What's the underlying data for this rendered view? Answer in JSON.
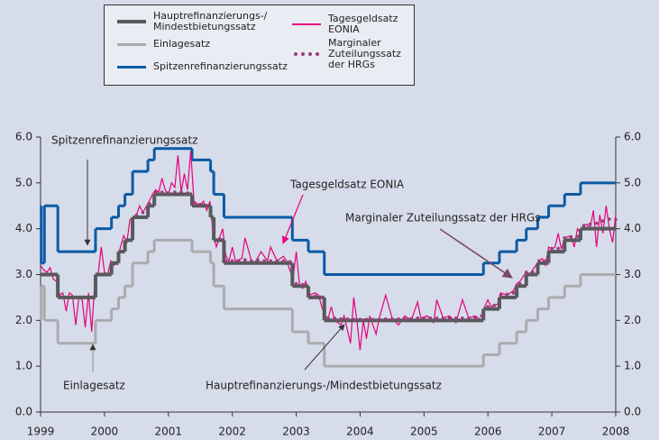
{
  "chart_data": {
    "type": "line",
    "xlim": [
      1999,
      2008
    ],
    "xticks": [
      1999,
      2000,
      2001,
      2002,
      2003,
      2004,
      2005,
      2006,
      2007,
      2008
    ],
    "ylim": [
      0,
      6
    ],
    "yticks": [
      {
        "value": 0,
        "label": "0.0"
      },
      {
        "value": 1,
        "label": "1.0"
      },
      {
        "value": 2,
        "label": "2.0"
      },
      {
        "value": 3,
        "label": "3.0"
      },
      {
        "value": 4,
        "label": "4.0"
      },
      {
        "value": 5,
        "label": "5.0"
      },
      {
        "value": 6,
        "label": "6.0"
      }
    ],
    "y2lim": [
      0,
      6
    ],
    "y2ticks": [
      {
        "value": 0,
        "label": "0.0"
      },
      {
        "value": 1,
        "label": "1.0"
      },
      {
        "value": 2,
        "label": "2.0"
      },
      {
        "value": 3,
        "label": "3.0"
      },
      {
        "value": 4,
        "label": "4.0"
      },
      {
        "value": 5,
        "label": "5.0"
      },
      {
        "value": 6,
        "label": "6.0"
      }
    ],
    "series": [
      {
        "name": "Einlagesatz",
        "color": "#a9abae",
        "style": "step",
        "x": [
          1999.0,
          1999.01,
          1999.06,
          1999.27,
          1999.86,
          2000.11,
          2000.22,
          2000.32,
          2000.44,
          2000.68,
          2000.78,
          2001.37,
          2001.66,
          2001.71,
          2001.87,
          2002.94,
          2003.19,
          2003.44,
          2005.93,
          2006.18,
          2006.45,
          2006.6,
          2006.78,
          2006.95,
          2007.2,
          2007.45,
          2008.0
        ],
        "values": [
          2.0,
          2.75,
          2.0,
          1.5,
          2.0,
          2.25,
          2.5,
          2.75,
          3.25,
          3.5,
          3.75,
          3.5,
          3.25,
          2.75,
          2.25,
          1.75,
          1.5,
          1.0,
          1.25,
          1.5,
          1.75,
          2.0,
          2.25,
          2.5,
          2.75,
          3.0,
          3.0
        ]
      },
      {
        "name": "Spitzenrefinanzierungssatz",
        "color": "#0b5aa6",
        "style": "step",
        "x": [
          1999.0,
          1999.01,
          1999.06,
          1999.27,
          1999.86,
          2000.11,
          2000.22,
          2000.32,
          2000.44,
          2000.68,
          2000.78,
          2001.37,
          2001.66,
          2001.71,
          2001.87,
          2002.94,
          2003.19,
          2003.44,
          2005.93,
          2006.18,
          2006.45,
          2006.6,
          2006.78,
          2006.95,
          2007.2,
          2007.45,
          2008.0
        ],
        "values": [
          4.5,
          3.25,
          4.5,
          3.5,
          4.0,
          4.25,
          4.5,
          4.75,
          5.25,
          5.5,
          5.75,
          5.5,
          5.25,
          4.75,
          4.25,
          3.75,
          3.5,
          3.0,
          3.25,
          3.5,
          3.75,
          4.0,
          4.25,
          4.5,
          4.75,
          5.0,
          5.0
        ]
      },
      {
        "name": "Tagesgeldsatz EONIA",
        "color": "#e6007e",
        "style": "line",
        "x": [
          1999.0,
          1999.05,
          1999.1,
          1999.15,
          1999.2,
          1999.25,
          1999.3,
          1999.35,
          1999.4,
          1999.45,
          1999.5,
          1999.55,
          1999.6,
          1999.65,
          1999.7,
          1999.75,
          1999.8,
          1999.85,
          1999.9,
          1999.95,
          2000.0,
          2000.05,
          2000.1,
          2000.15,
          2000.2,
          2000.25,
          2000.3,
          2000.35,
          2000.4,
          2000.45,
          2000.5,
          2000.55,
          2000.6,
          2000.7,
          2000.75,
          2000.8,
          2000.85,
          2000.9,
          2000.95,
          2001.0,
          2001.05,
          2001.1,
          2001.15,
          2001.2,
          2001.25,
          2001.3,
          2001.35,
          2001.4,
          2001.45,
          2001.5,
          2001.55,
          2001.6,
          2001.65,
          2001.7,
          2001.75,
          2001.8,
          2001.85,
          2001.9,
          2001.95,
          2002.0,
          2002.05,
          2002.15,
          2002.2,
          2002.3,
          2002.35,
          2002.45,
          2002.55,
          2002.6,
          2002.7,
          2002.8,
          2002.85,
          2002.9,
          2002.95,
          2003.0,
          2003.05,
          2003.1,
          2003.15,
          2003.2,
          2003.3,
          2003.35,
          2003.4,
          2003.45,
          2003.5,
          2003.55,
          2003.6,
          2003.7,
          2003.75,
          2003.85,
          2003.9,
          2003.95,
          2004.0,
          2004.05,
          2004.1,
          2004.15,
          2004.25,
          2004.3,
          2004.4,
          2004.5,
          2004.6,
          2004.7,
          2004.8,
          2004.9,
          2004.95,
          2005.05,
          2005.15,
          2005.2,
          2005.3,
          2005.4,
          2005.5,
          2005.6,
          2005.7,
          2005.8,
          2005.9,
          2005.95,
          2006.0,
          2006.05,
          2006.15,
          2006.2,
          2006.3,
          2006.4,
          2006.45,
          2006.5,
          2006.55,
          2006.6,
          2006.65,
          2006.7,
          2006.8,
          2006.85,
          2006.9,
          2006.95,
          2007.0,
          2007.05,
          2007.1,
          2007.15,
          2007.2,
          2007.3,
          2007.35,
          2007.4,
          2007.45,
          2007.5,
          2007.55,
          2007.6,
          2007.65,
          2007.7,
          2007.75,
          2007.8,
          2007.85,
          2007.9,
          2007.95,
          2008.0
        ],
        "values": [
          3.2,
          3.1,
          3.05,
          3.15,
          2.9,
          2.85,
          2.55,
          2.6,
          2.2,
          2.6,
          2.55,
          1.9,
          2.5,
          2.45,
          1.85,
          2.6,
          1.75,
          2.9,
          3.0,
          3.6,
          3.05,
          3.0,
          3.3,
          3.2,
          3.3,
          3.6,
          3.85,
          3.7,
          4.2,
          4.25,
          4.3,
          4.5,
          4.35,
          4.6,
          4.75,
          4.85,
          4.8,
          5.1,
          4.85,
          4.75,
          5.0,
          4.9,
          5.6,
          4.8,
          5.2,
          4.85,
          5.7,
          4.6,
          4.55,
          4.5,
          4.6,
          4.4,
          4.6,
          3.9,
          3.6,
          3.8,
          4.0,
          3.4,
          3.3,
          3.6,
          3.3,
          3.35,
          3.8,
          3.3,
          3.25,
          3.5,
          3.3,
          3.6,
          3.3,
          3.4,
          3.3,
          3.1,
          2.9,
          3.5,
          2.8,
          2.7,
          2.85,
          2.55,
          2.6,
          2.55,
          2.3,
          2.1,
          2.05,
          2.3,
          2.0,
          1.9,
          2.1,
          1.5,
          2.5,
          2.0,
          1.35,
          2.0,
          1.6,
          2.1,
          1.7,
          2.05,
          2.55,
          2.05,
          1.9,
          2.1,
          2.0,
          2.4,
          2.05,
          2.1,
          1.95,
          2.45,
          2.05,
          2.1,
          1.95,
          2.45,
          2.05,
          2.1,
          2.0,
          2.3,
          2.45,
          2.3,
          2.35,
          2.6,
          2.55,
          2.65,
          2.8,
          2.85,
          2.95,
          3.05,
          3.0,
          3.1,
          3.3,
          3.35,
          3.2,
          3.6,
          3.55,
          3.6,
          3.9,
          3.55,
          3.8,
          3.85,
          3.6,
          4.0,
          3.9,
          4.05,
          4.1,
          4.0,
          4.4,
          3.6,
          4.3,
          3.9,
          4.5,
          4.0,
          3.7,
          4.3
        ]
      },
      {
        "name": "Hauptrefinanzierungs-/\nMindestbietungssatz",
        "color": "#58595b",
        "style": "step",
        "x": [
          1999.0,
          1999.27,
          1999.86,
          2000.11,
          2000.22,
          2000.32,
          2000.44,
          2000.68,
          2000.78,
          2001.37,
          2001.66,
          2001.71,
          2001.87,
          2002.94,
          2003.19,
          2003.44,
          2005.93,
          2006.18,
          2006.45,
          2006.6,
          2006.78,
          2006.95,
          2007.2,
          2007.45,
          2008.0
        ],
        "values": [
          3.0,
          2.5,
          3.0,
          3.25,
          3.5,
          3.75,
          4.25,
          4.5,
          4.75,
          4.5,
          4.25,
          3.75,
          3.25,
          2.75,
          2.5,
          2.0,
          2.25,
          2.5,
          2.75,
          3.0,
          3.25,
          3.5,
          3.75,
          4.0,
          4.0
        ]
      },
      {
        "name": "Marginaler Zuteilungssatz der HRGs",
        "color": "#9b3d78",
        "style": "dots",
        "x": [
          2000.5,
          2000.6,
          2000.7,
          2000.8,
          2000.9,
          2001.0,
          2001.1,
          2001.2,
          2001.3,
          2001.4,
          2001.5,
          2001.6,
          2001.7,
          2001.8,
          2001.9,
          2002.0,
          2002.1,
          2002.2,
          2002.3,
          2002.4,
          2002.5,
          2002.6,
          2002.7,
          2002.8,
          2002.9,
          2003.0,
          2003.1,
          2003.2,
          2003.3,
          2003.4,
          2003.5,
          2003.6,
          2003.7,
          2003.8,
          2003.9,
          2004.0,
          2004.1,
          2004.2,
          2004.3,
          2004.4,
          2004.5,
          2004.6,
          2004.7,
          2004.8,
          2004.9,
          2005.0,
          2005.1,
          2005.2,
          2005.3,
          2005.4,
          2005.5,
          2005.6,
          2005.7,
          2005.8,
          2005.9,
          2006.0,
          2006.1,
          2006.2,
          2006.3,
          2006.4,
          2006.5,
          2006.6,
          2006.7,
          2006.8,
          2006.9,
          2007.0,
          2007.1,
          2007.2,
          2007.3,
          2007.4,
          2007.5,
          2007.6,
          2007.7,
          2007.8,
          2007.9,
          2008.0
        ],
        "values": [
          4.3,
          4.35,
          4.55,
          4.8,
          4.8,
          4.78,
          4.8,
          4.8,
          4.78,
          4.55,
          4.53,
          4.5,
          4.0,
          3.78,
          3.3,
          3.3,
          3.3,
          3.32,
          3.3,
          3.32,
          3.3,
          3.3,
          3.3,
          3.3,
          3.28,
          2.8,
          2.78,
          2.55,
          2.53,
          2.5,
          2.05,
          2.05,
          2.03,
          2.03,
          2.02,
          2.02,
          2.02,
          2.02,
          2.02,
          2.03,
          2.03,
          2.03,
          2.03,
          2.04,
          2.05,
          2.05,
          2.05,
          2.05,
          2.05,
          2.05,
          2.05,
          2.05,
          2.05,
          2.06,
          2.1,
          2.3,
          2.33,
          2.55,
          2.57,
          2.6,
          2.8,
          3.05,
          3.05,
          3.3,
          3.3,
          3.57,
          3.57,
          3.8,
          3.82,
          3.83,
          4.07,
          4.1,
          4.12,
          4.17,
          4.21,
          4.2
        ]
      }
    ],
    "legend_order": [
      3,
      0,
      1,
      2,
      4
    ],
    "annotations": [
      "Spitzenrefinanzierungssatz",
      "Tagesgeldsatz EONIA",
      "Marginaler Zuteilungssatz der HRGs",
      "Einlagesatz",
      "Hauptrefinanzierungs-/Mindestbietungssatz"
    ]
  }
}
